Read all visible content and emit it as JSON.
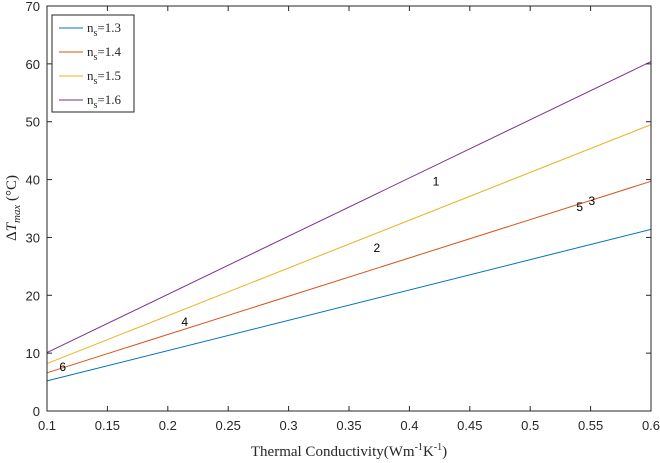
{
  "chart_data": {
    "type": "line",
    "xlabel": "Thermal Conductivity(Wm⁻¹K⁻¹)",
    "xlabel_parts": {
      "main": "Thermal Conductivity(Wm",
      "sup1": "-1",
      "mid": "K",
      "sup2": "-1",
      "end": ")"
    },
    "ylabel": "ΔT_max (°C)",
    "ylabel_parts": {
      "delta": "Δ",
      "t": "T",
      "sub": "max",
      "unit": " (°C)"
    },
    "xlim": [
      0.1,
      0.6
    ],
    "ylim": [
      0,
      70
    ],
    "xticks": [
      "0.1",
      "0.15",
      "0.2",
      "0.25",
      "0.3",
      "0.35",
      "0.4",
      "0.45",
      "0.5",
      "0.55",
      "0.6"
    ],
    "yticks": [
      "0",
      "10",
      "20",
      "30",
      "40",
      "50",
      "60",
      "70"
    ],
    "grid": false,
    "legend_position": "top-left",
    "series": [
      {
        "name": "n_s=1.3",
        "label_main": "n",
        "label_sub": "s",
        "label_rest": "=1.3",
        "color": "#0072BD",
        "x": [
          0.1,
          0.6
        ],
        "y": [
          5.2,
          31.4
        ]
      },
      {
        "name": "n_s=1.4",
        "label_main": "n",
        "label_sub": "s",
        "label_rest": "=1.4",
        "color": "#D95319",
        "x": [
          0.1,
          0.6
        ],
        "y": [
          6.6,
          39.7
        ]
      },
      {
        "name": "n_s=1.5",
        "label_main": "n",
        "label_sub": "s",
        "label_rest": "=1.5",
        "color": "#EDB120",
        "x": [
          0.1,
          0.6
        ],
        "y": [
          8.2,
          49.5
        ]
      },
      {
        "name": "n_s=1.6",
        "label_main": "n",
        "label_sub": "s",
        "label_rest": "=1.6",
        "color": "#7E2F8E",
        "x": [
          0.1,
          0.6
        ],
        "y": [
          10.1,
          60.4
        ]
      }
    ],
    "annotations": [
      {
        "text": "1",
        "x": 0.422,
        "y": 39.0
      },
      {
        "text": "2",
        "x": 0.373,
        "y": 27.5
      },
      {
        "text": "3",
        "x": 0.551,
        "y": 35.6
      },
      {
        "text": "4",
        "x": 0.214,
        "y": 14.7
      },
      {
        "text": "5",
        "x": 0.541,
        "y": 34.6
      },
      {
        "text": "6",
        "x": 0.113,
        "y": 6.9
      }
    ]
  }
}
